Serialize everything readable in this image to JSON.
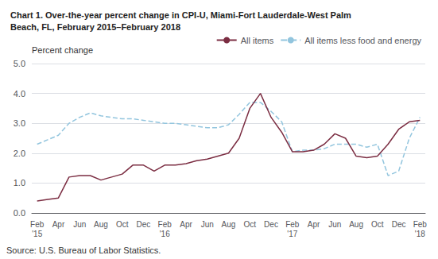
{
  "chart_data": {
    "type": "line",
    "title": "Chart 1. Over-the-year percent change in CPI-U, Miami-Fort Lauderdale-West Palm\nBeach, FL, February 2015–February 2018",
    "ylabel": "Percent change",
    "annotations": [
      "Source: U.S. Bureau of Labor Statistics."
    ],
    "categories": [
      "Feb\n'15",
      null,
      "Apr",
      null,
      "Jun",
      null,
      "Aug",
      null,
      "Oct",
      null,
      "Dec",
      null,
      "Feb\n'16",
      null,
      "Apr",
      null,
      "Jun",
      null,
      "Aug",
      null,
      "Oct",
      null,
      "Dec",
      null,
      "Feb\n'17",
      null,
      "Apr",
      null,
      "Jun",
      null,
      "Aug",
      null,
      "Oct",
      null,
      "Dec",
      null,
      "Feb\n'18"
    ],
    "series": [
      {
        "name": "All items",
        "color": "#7B2D42",
        "line_style": "solid",
        "values": [
          0.4,
          0.45,
          0.5,
          1.2,
          1.25,
          1.25,
          1.1,
          1.2,
          1.3,
          1.6,
          1.6,
          1.4,
          1.6,
          1.6,
          1.65,
          1.75,
          1.8,
          1.9,
          2.0,
          2.5,
          3.5,
          4.0,
          3.2,
          2.7,
          2.05,
          2.05,
          2.1,
          2.3,
          2.65,
          2.5,
          1.9,
          1.85,
          1.9,
          2.3,
          2.8,
          3.05,
          3.1
        ]
      },
      {
        "name": "All items less food and energy",
        "color": "#92C5DE",
        "line_style": "dashed",
        "values": [
          2.3,
          2.45,
          2.6,
          3.0,
          3.2,
          3.35,
          3.25,
          3.2,
          3.15,
          3.15,
          3.1,
          3.05,
          3.0,
          3.0,
          2.95,
          2.9,
          2.85,
          2.85,
          2.95,
          3.3,
          3.7,
          3.7,
          3.4,
          3.05,
          2.05,
          2.1,
          2.1,
          2.15,
          2.3,
          2.3,
          2.3,
          2.2,
          2.3,
          1.25,
          1.4,
          2.5,
          3.2
        ]
      }
    ],
    "ylim": [
      0.0,
      5.0
    ],
    "yticks": [
      {
        "value": 0.0,
        "label": "0.0"
      },
      {
        "value": 1.0,
        "label": "1.0"
      },
      {
        "value": 2.0,
        "label": "2.0"
      },
      {
        "value": 3.0,
        "label": "3.0"
      },
      {
        "value": 4.0,
        "label": "4.0"
      },
      {
        "value": 5.0,
        "label": "5.0"
      }
    ],
    "grid": true,
    "legend": "upper right"
  }
}
